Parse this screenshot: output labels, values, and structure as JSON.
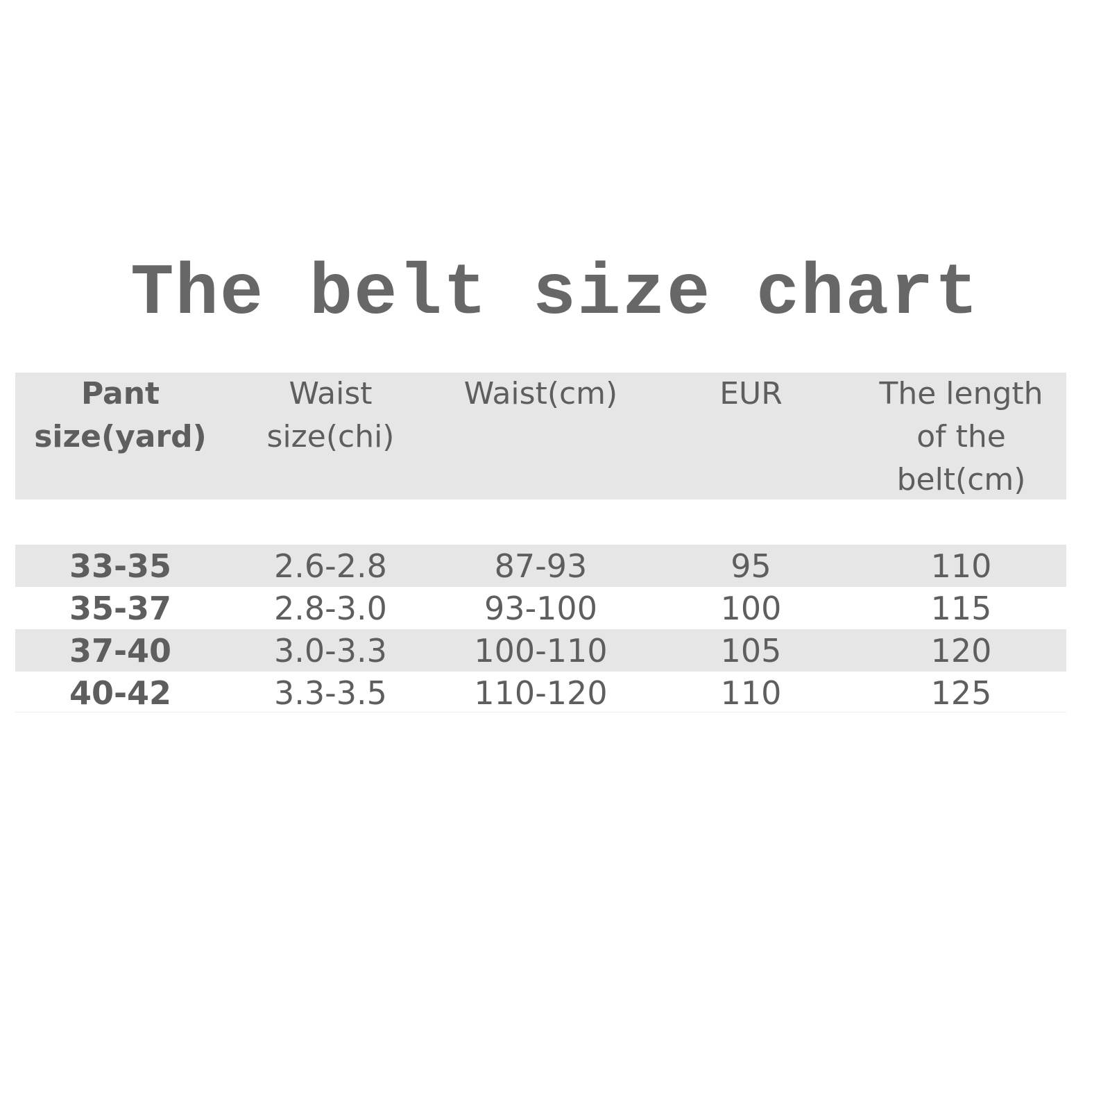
{
  "title": "The belt size chart",
  "colors": {
    "row_shade": "#e6e6e6",
    "text": "#5e5e5e"
  },
  "table": {
    "headers": [
      [
        "Pant",
        "size(yard)"
      ],
      [
        "Waist",
        "size(chi)"
      ],
      [
        "Waist(cm)"
      ],
      [
        "EUR"
      ],
      [
        "The length",
        "of the",
        "belt(cm)"
      ]
    ],
    "rows": [
      [
        "33-35",
        "2.6-2.8",
        "87-93",
        "95",
        "110"
      ],
      [
        "35-37",
        "2.8-3.0",
        "93-100",
        "100",
        "115"
      ],
      [
        "37-40",
        "3.0-3.3",
        "100-110",
        "105",
        "120"
      ],
      [
        "40-42",
        "3.3-3.5",
        "110-120",
        "110",
        "125"
      ]
    ]
  }
}
